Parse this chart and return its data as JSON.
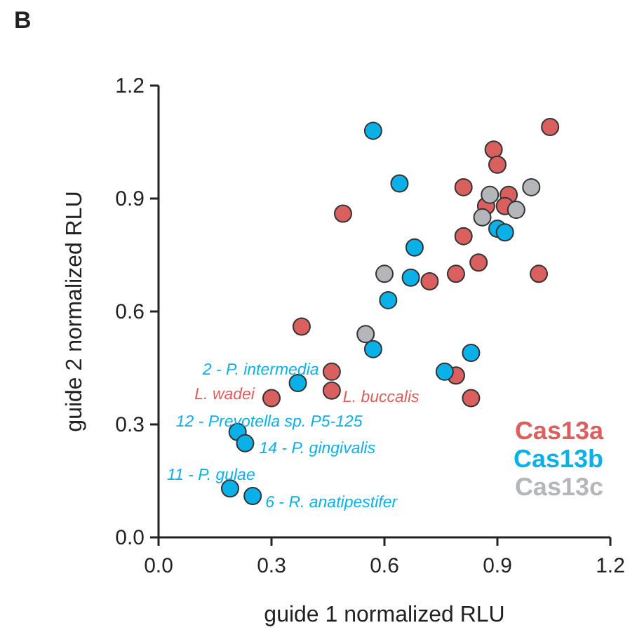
{
  "chart_data": {
    "type": "scatter",
    "title": "B",
    "xlabel": "guide 1 normalized RLU",
    "ylabel": "guide 2 normalized RLU",
    "xlim": [
      0,
      1.2
    ],
    "ylim": [
      0,
      1.2
    ],
    "xticks": [
      {
        "value": 0,
        "label": "0.0"
      },
      {
        "value": 0.3,
        "label": "0.3"
      },
      {
        "value": 0.6,
        "label": "0.6"
      },
      {
        "value": 0.9,
        "label": "0.9"
      },
      {
        "value": 1.2,
        "label": "1.2"
      }
    ],
    "yticks": [
      {
        "value": 0,
        "label": "0.0"
      },
      {
        "value": 0.3,
        "label": "0.3"
      },
      {
        "value": 0.6,
        "label": "0.6"
      },
      {
        "value": 0.9,
        "label": "0.9"
      },
      {
        "value": 1.2,
        "label": "1.2"
      }
    ],
    "marker": "circle",
    "legend": "bottom right",
    "grid": false,
    "series": [
      {
        "name": "Cas13a",
        "color": "#d9605f",
        "x": [
          0.49,
          0.38,
          0.46,
          0.46,
          0.3,
          1.04,
          0.89,
          0.9,
          0.81,
          0.93,
          0.87,
          0.92,
          0.81,
          0.85,
          1.01,
          0.72,
          0.79,
          0.79,
          0.83
        ],
        "values": [
          0.86,
          0.56,
          0.44,
          0.39,
          0.37,
          1.09,
          1.03,
          0.99,
          0.93,
          0.91,
          0.88,
          0.88,
          0.8,
          0.73,
          0.7,
          0.68,
          0.7,
          0.43,
          0.37
        ]
      },
      {
        "name": "Cas13b",
        "color": "#0ab0e8",
        "x": [
          0.57,
          0.61,
          0.57,
          0.37,
          0.21,
          0.23,
          0.19,
          0.25,
          0.64,
          0.9,
          0.92,
          0.68,
          0.67,
          0.83,
          0.76
        ],
        "values": [
          1.08,
          0.63,
          0.5,
          0.41,
          0.28,
          0.25,
          0.13,
          0.11,
          0.94,
          0.82,
          0.81,
          0.77,
          0.69,
          0.49,
          0.44
        ]
      },
      {
        "name": "Cas13c",
        "color": "#b4b6ba",
        "x": [
          0.6,
          0.55,
          0.99,
          0.88,
          0.95,
          0.86
        ],
        "values": [
          0.7,
          0.54,
          0.93,
          0.91,
          0.87,
          0.85
        ]
      }
    ],
    "annotations": [
      {
        "text": "2 - P. intermedia",
        "x": 0.37,
        "y": 0.41
      },
      {
        "text": "L. wadei",
        "x": 0.3,
        "y": 0.37
      },
      {
        "text": "L. buccalis",
        "x": 0.46,
        "y": 0.39
      },
      {
        "text": "12 - Prevotella sp. P5-125",
        "x": 0.21,
        "y": 0.28
      },
      {
        "text": "14 - P. gingivalis",
        "x": 0.23,
        "y": 0.25
      },
      {
        "text": "11 - P. gulae",
        "x": 0.19,
        "y": 0.13
      },
      {
        "text": "6 - R. anatipestifer",
        "x": 0.25,
        "y": 0.11
      }
    ]
  }
}
